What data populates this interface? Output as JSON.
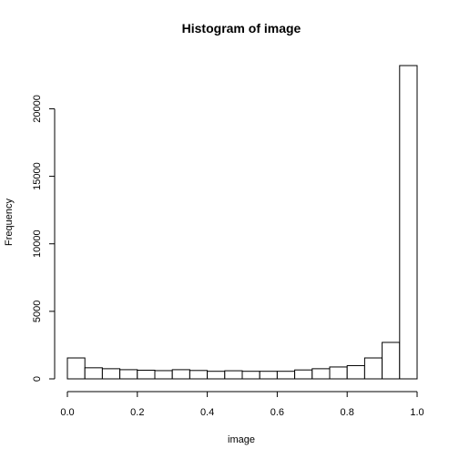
{
  "chart_data": {
    "type": "bar",
    "title": "Histogram of image",
    "xlabel": "image",
    "ylabel": "Frequency",
    "xlim": [
      0,
      1
    ],
    "ylim": [
      0,
      23200
    ],
    "bin_width": 0.05,
    "bins": [
      {
        "start": 0.0,
        "end": 0.05,
        "value": 1550
      },
      {
        "start": 0.05,
        "end": 0.1,
        "value": 820
      },
      {
        "start": 0.1,
        "end": 0.15,
        "value": 750
      },
      {
        "start": 0.15,
        "end": 0.2,
        "value": 680
      },
      {
        "start": 0.2,
        "end": 0.25,
        "value": 640
      },
      {
        "start": 0.25,
        "end": 0.3,
        "value": 610
      },
      {
        "start": 0.3,
        "end": 0.35,
        "value": 680
      },
      {
        "start": 0.35,
        "end": 0.4,
        "value": 620
      },
      {
        "start": 0.4,
        "end": 0.45,
        "value": 560
      },
      {
        "start": 0.45,
        "end": 0.5,
        "value": 600
      },
      {
        "start": 0.5,
        "end": 0.55,
        "value": 560
      },
      {
        "start": 0.55,
        "end": 0.6,
        "value": 560
      },
      {
        "start": 0.6,
        "end": 0.65,
        "value": 560
      },
      {
        "start": 0.65,
        "end": 0.7,
        "value": 660
      },
      {
        "start": 0.7,
        "end": 0.75,
        "value": 750
      },
      {
        "start": 0.75,
        "end": 0.8,
        "value": 880
      },
      {
        "start": 0.8,
        "end": 0.85,
        "value": 980
      },
      {
        "start": 0.85,
        "end": 0.9,
        "value": 1550
      },
      {
        "start": 0.9,
        "end": 0.95,
        "value": 2700
      },
      {
        "start": 0.95,
        "end": 1.0,
        "value": 23200
      }
    ],
    "x_ticks": [
      {
        "value": 0.0,
        "label": "0.0"
      },
      {
        "value": 0.2,
        "label": "0.2"
      },
      {
        "value": 0.4,
        "label": "0.4"
      },
      {
        "value": 0.6,
        "label": "0.6"
      },
      {
        "value": 0.8,
        "label": "0.8"
      },
      {
        "value": 1.0,
        "label": "1.0"
      }
    ],
    "y_ticks": [
      {
        "value": 0,
        "label": "0"
      },
      {
        "value": 5000,
        "label": "5000"
      },
      {
        "value": 10000,
        "label": "10000"
      },
      {
        "value": 15000,
        "label": "15000"
      },
      {
        "value": 20000,
        "label": "20000"
      }
    ],
    "grid": false,
    "bar_fill": "#ffffff",
    "bar_stroke": "#000000"
  }
}
